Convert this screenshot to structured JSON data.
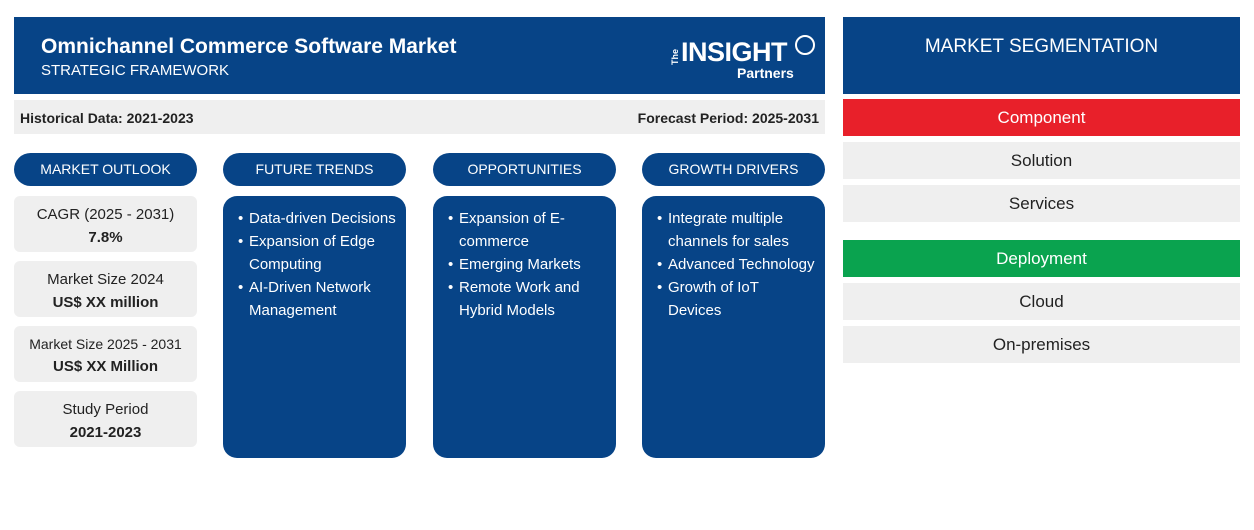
{
  "header": {
    "title": "Omnichannel Commerce Software Market",
    "subtitle": "STRATEGIC FRAMEWORK",
    "logo": {
      "the": "The",
      "insight": "INSIGHT",
      "partners": "Partners"
    }
  },
  "periods": {
    "historical": "Historical Data: 2021-2023",
    "forecast": "Forecast Period: 2025-2031"
  },
  "columns": {
    "outlook": {
      "title": "MARKET OUTLOOK"
    },
    "trends": {
      "title": "FUTURE TRENDS"
    },
    "opportunities": {
      "title": "OPPORTUNITIES"
    },
    "drivers": {
      "title": "GROWTH DRIVERS"
    }
  },
  "outlook": [
    {
      "label": "CAGR (2025 - 2031)",
      "value": "7.8%"
    },
    {
      "label": "Market Size 2024",
      "value": "US$ XX million"
    },
    {
      "label": "Market Size 2025 - 2031",
      "value": "US$ XX Million"
    },
    {
      "label": "Study Period",
      "value": "2021-2023"
    }
  ],
  "trends": [
    "Data-driven Decisions",
    "Expansion of Edge Computing",
    "AI-Driven Network Management"
  ],
  "opportunities": [
    "Expansion of E-commerce",
    "Emerging Markets",
    "Remote Work and Hybrid Models"
  ],
  "drivers": [
    "Integrate multiple channels for sales",
    "Advanced Technology",
    "Growth of IoT Devices"
  ],
  "segmentation": {
    "title": "MARKET SEGMENTATION",
    "component": {
      "label": "Component",
      "items": [
        "Solution",
        "Services"
      ]
    },
    "deployment": {
      "label": "Deployment",
      "items": [
        "Cloud",
        "On-premises"
      ]
    }
  },
  "colors": {
    "primary": "#074487",
    "light_gray": "#efefef",
    "component_red": "#e8202a",
    "deployment_green": "#0aa34f"
  }
}
